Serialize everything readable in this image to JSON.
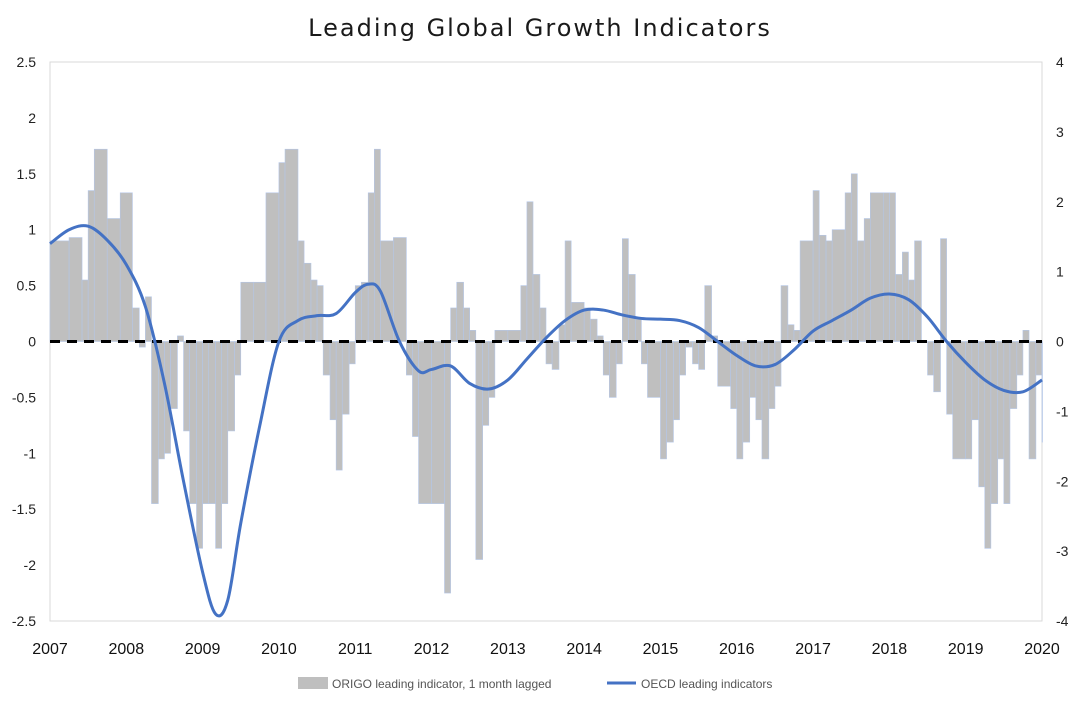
{
  "chart_data": {
    "type": "bar+line",
    "title": "Leading Global Growth Indicators",
    "x_range": [
      2007,
      2020
    ],
    "x_tick_labels": [
      "2007",
      "2008",
      "2009",
      "2010",
      "2011",
      "2012",
      "2013",
      "2014",
      "2015",
      "2016",
      "2017",
      "2018",
      "2019",
      "2020"
    ],
    "y_left": {
      "range": [
        -2.5,
        2.5
      ],
      "ticks": [
        2.5,
        2,
        1.5,
        1,
        0.5,
        0,
        -0.5,
        -1,
        -1.5,
        -2,
        -2.5
      ],
      "tick_labels": [
        "2.5",
        "2",
        "1.5",
        "1",
        "0.5",
        "0",
        "-0.5",
        "-1",
        "-1.5",
        "-2",
        "-2.5"
      ]
    },
    "y_right": {
      "range": [
        -4,
        4
      ],
      "ticks": [
        4,
        3,
        2,
        1,
        0,
        -1,
        -2,
        -3,
        -4
      ],
      "tick_labels": [
        "4",
        "3",
        "2",
        "1",
        "0",
        "-1",
        "-2",
        "-3",
        "-4"
      ]
    },
    "zero_line": "dashed",
    "grid": false,
    "legend_position": "bottom",
    "series": [
      {
        "name": "ORIGO leading indicator, 1 month lagged",
        "kind": "bar",
        "axis": "left",
        "color": "#bfbfbf",
        "x": [
          2007.0,
          2007.25,
          2007.42,
          2007.5,
          2007.58,
          2007.75,
          2007.92,
          2008.08,
          2008.17,
          2008.25,
          2008.33,
          2008.42,
          2008.5,
          2008.58,
          2008.67,
          2008.75,
          2008.83,
          2008.92,
          2009.0,
          2009.08,
          2009.17,
          2009.25,
          2009.33,
          2009.42,
          2009.5,
          2009.67,
          2009.83,
          2010.0,
          2010.08,
          2010.25,
          2010.33,
          2010.42,
          2010.5,
          2010.58,
          2010.67,
          2010.75,
          2010.83,
          2010.92,
          2011.0,
          2011.08,
          2011.17,
          2011.25,
          2011.33,
          2011.5,
          2011.67,
          2011.75,
          2011.83,
          2012.0,
          2012.17,
          2012.25,
          2012.33,
          2012.42,
          2012.5,
          2012.58,
          2012.67,
          2012.75,
          2012.83,
          2013.0,
          2013.17,
          2013.25,
          2013.33,
          2013.42,
          2013.5,
          2013.58,
          2013.67,
          2013.75,
          2013.83,
          2014.0,
          2014.08,
          2014.17,
          2014.25,
          2014.33,
          2014.42,
          2014.5,
          2014.58,
          2014.67,
          2014.75,
          2014.83,
          2015.0,
          2015.08,
          2015.17,
          2015.25,
          2015.33,
          2015.42,
          2015.5,
          2015.58,
          2015.67,
          2015.75,
          2015.92,
          2016.0,
          2016.08,
          2016.17,
          2016.25,
          2016.33,
          2016.42,
          2016.5,
          2016.58,
          2016.67,
          2016.75,
          2016.83,
          2017.0,
          2017.08,
          2017.17,
          2017.25,
          2017.42,
          2017.5,
          2017.58,
          2017.67,
          2017.75,
          2017.92,
          2018.0,
          2018.08,
          2018.17,
          2018.25,
          2018.33,
          2018.42,
          2018.5,
          2018.58,
          2018.67,
          2018.75,
          2018.83,
          2019.0,
          2019.08,
          2019.17,
          2019.25,
          2019.33,
          2019.42,
          2019.5,
          2019.58,
          2019.67,
          2019.75,
          2019.83,
          2019.92,
          2020.0
        ],
        "values": [
          0.9,
          0.93,
          0.55,
          1.35,
          1.72,
          1.1,
          1.33,
          0.3,
          -0.05,
          0.4,
          -1.45,
          -1.05,
          -1.0,
          -0.6,
          0.05,
          -0.8,
          -1.45,
          -1.85,
          -1.45,
          -1.45,
          -1.85,
          -1.45,
          -0.8,
          -0.3,
          0.53,
          0.53,
          1.33,
          1.6,
          1.72,
          0.9,
          0.7,
          0.55,
          0.5,
          -0.3,
          -0.7,
          -1.15,
          -0.65,
          -0.2,
          0.5,
          0.53,
          1.33,
          1.72,
          0.9,
          0.93,
          -0.3,
          -0.85,
          -1.45,
          -1.45,
          -2.25,
          0.3,
          0.53,
          0.3,
          0.1,
          -1.95,
          -0.75,
          -0.5,
          0.1,
          0.1,
          0.5,
          1.25,
          0.6,
          0.3,
          -0.2,
          -0.25,
          0.15,
          0.9,
          0.35,
          0.3,
          0.2,
          0.05,
          -0.3,
          -0.5,
          -0.2,
          0.92,
          0.6,
          0.2,
          -0.2,
          -0.5,
          -1.05,
          -0.9,
          -0.7,
          -0.3,
          -0.05,
          -0.2,
          -0.25,
          0.5,
          0.05,
          -0.4,
          -0.6,
          -1.05,
          -0.9,
          -0.5,
          -0.7,
          -1.05,
          -0.6,
          -0.4,
          0.5,
          0.15,
          0.1,
          0.9,
          1.35,
          0.95,
          0.9,
          1.0,
          1.33,
          1.5,
          0.9,
          1.1,
          1.33,
          1.33,
          1.33,
          0.6,
          0.8,
          0.55,
          0.9,
          0.0,
          -0.3,
          -0.45,
          0.92,
          -0.65,
          -1.05,
          -1.05,
          -0.7,
          -1.3,
          -1.85,
          -1.45,
          -1.05,
          -1.45,
          -0.6,
          -0.3,
          0.1,
          -1.05,
          -0.3,
          -0.9
        ]
      },
      {
        "name": "OECD leading indicators",
        "kind": "line",
        "axis": "right",
        "color": "#4472c4",
        "x": [
          2007.0,
          2007.25,
          2007.5,
          2007.75,
          2008.0,
          2008.25,
          2008.5,
          2008.75,
          2009.0,
          2009.17,
          2009.33,
          2009.5,
          2009.75,
          2010.0,
          2010.25,
          2010.5,
          2010.75,
          2011.0,
          2011.17,
          2011.33,
          2011.58,
          2011.83,
          2012.0,
          2012.25,
          2012.5,
          2012.75,
          2013.0,
          2013.25,
          2013.5,
          2013.75,
          2014.0,
          2014.25,
          2014.5,
          2014.75,
          2015.0,
          2015.25,
          2015.5,
          2015.75,
          2016.0,
          2016.25,
          2016.5,
          2016.75,
          2017.0,
          2017.25,
          2017.5,
          2017.75,
          2018.0,
          2018.25,
          2018.5,
          2018.75,
          2019.0,
          2019.25,
          2019.5,
          2019.75,
          2020.0
        ],
        "values": [
          1.4,
          1.6,
          1.65,
          1.45,
          1.1,
          0.5,
          -0.6,
          -2.0,
          -3.3,
          -3.9,
          -3.7,
          -2.6,
          -1.2,
          0.0,
          0.3,
          0.37,
          0.4,
          0.7,
          0.82,
          0.72,
          0.0,
          -0.42,
          -0.4,
          -0.35,
          -0.6,
          -0.68,
          -0.55,
          -0.25,
          0.05,
          0.3,
          0.45,
          0.45,
          0.38,
          0.33,
          0.32,
          0.3,
          0.2,
          0.0,
          -0.2,
          -0.35,
          -0.33,
          -0.12,
          0.15,
          0.3,
          0.45,
          0.62,
          0.68,
          0.6,
          0.35,
          0.0,
          -0.3,
          -0.55,
          -0.7,
          -0.72,
          -0.55
        ]
      }
    ]
  }
}
